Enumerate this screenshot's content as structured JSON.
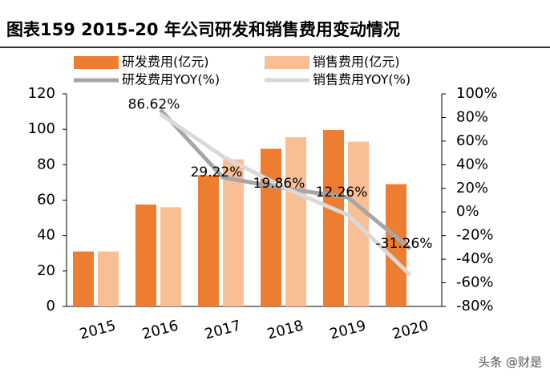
{
  "chart_data": {
    "type": "bar-line",
    "title": "图表159  2015-20 年公司研发和销售费用变动情况",
    "categories": [
      "2015",
      "2016",
      "2017",
      "2018",
      "2019",
      "2020"
    ],
    "series": [
      {
        "name": "研发费用(亿元)",
        "type": "bar",
        "color": "#ED7D31",
        "values": [
          31,
          57.5,
          74,
          89,
          99.6,
          69
        ]
      },
      {
        "name": "销售费用(亿元)",
        "type": "bar",
        "color": "#F8BE94",
        "values": [
          31,
          56,
          83,
          95.5,
          93,
          null
        ]
      },
      {
        "name": "研发费用YOY(%)",
        "type": "line",
        "axis": "y2",
        "color": "#A6A6A6",
        "values": [
          null,
          86.62,
          29.22,
          19.86,
          12.26,
          -31.26
        ],
        "value_labels": [
          null,
          "86.62%",
          "29.22%",
          "19.86%",
          "12.26%",
          "-31.26%"
        ]
      },
      {
        "name": "销售费用YOY(%)",
        "type": "line",
        "axis": "y2",
        "color": "#D9D9D9",
        "values": [
          null,
          83,
          47,
          20,
          -2.6,
          -53.5
        ]
      }
    ],
    "ylim": [
      0,
      120
    ],
    "yticks": [
      0,
      20,
      40,
      60,
      80,
      100,
      120
    ],
    "y2lim": [
      -80,
      100
    ],
    "y2ticks": [
      {
        "value": -80,
        "label": "-80%"
      },
      {
        "value": -60,
        "label": "-60%"
      },
      {
        "value": -40,
        "label": "-40%"
      },
      {
        "value": -20,
        "label": "-20%"
      },
      {
        "value": 0,
        "label": "0%"
      },
      {
        "value": 20,
        "label": "20%"
      },
      {
        "value": 40,
        "label": "40%"
      },
      {
        "value": 60,
        "label": "60%"
      },
      {
        "value": 80,
        "label": "80%"
      },
      {
        "value": 100,
        "label": "100%"
      }
    ],
    "watermark": "头条 @财是"
  }
}
